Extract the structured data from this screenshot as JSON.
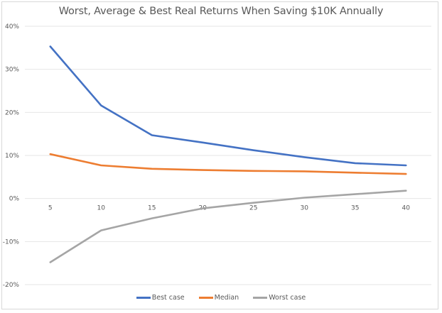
{
  "chart_data": {
    "type": "line",
    "title": "Worst, Average & Best Real Returns When Saving $10K Annually",
    "xlabel": "",
    "ylabel": "",
    "categories": [
      "5",
      "10",
      "15",
      "20",
      "25",
      "30",
      "35",
      "40"
    ],
    "series": [
      {
        "name": "Best case",
        "color": "#4472c4",
        "values": [
          35.3,
          21.6,
          14.7,
          13.0,
          11.2,
          9.6,
          8.2,
          7.7
        ]
      },
      {
        "name": "Median",
        "color": "#ed7d31",
        "values": [
          10.3,
          7.7,
          6.9,
          6.6,
          6.4,
          6.3,
          6.0,
          5.7
        ]
      },
      {
        "name": "Worst case",
        "color": "#a5a5a5",
        "values": [
          -14.8,
          -7.4,
          -4.6,
          -2.3,
          -1.0,
          0.2,
          1.0,
          1.8
        ]
      }
    ],
    "ylim": [
      -20,
      40
    ],
    "yticks": [
      "40%",
      "30%",
      "20%",
      "10%",
      "0%",
      "-10%",
      "-20%"
    ],
    "grid": true,
    "legend_position": "bottom"
  }
}
